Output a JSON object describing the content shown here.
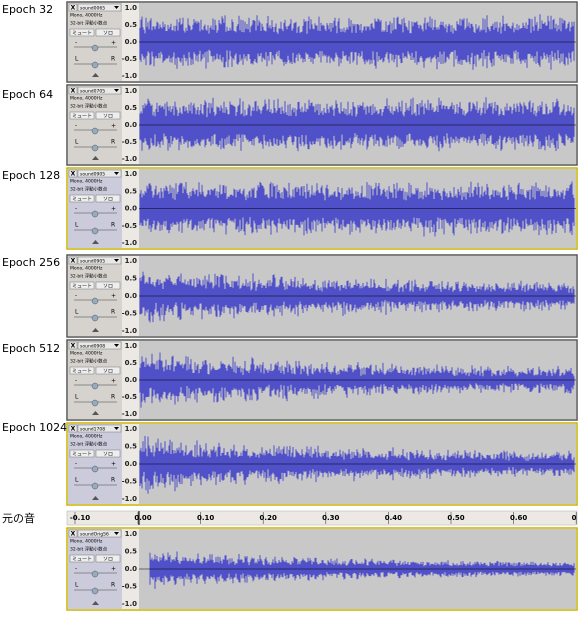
{
  "tracks": [
    {
      "label": "Epoch 32",
      "name": "sound0065",
      "rate": "Mono, 4000Hz",
      "format": "32-bit 浮動小数点"
    },
    {
      "label": "Epoch 64",
      "name": "sound0705",
      "rate": "Mono, 4000Hz",
      "format": "32-bit 浮動小数点"
    },
    {
      "label": "Epoch 128",
      "name": "sound0905",
      "rate": "Mono, 4000Hz",
      "format": "32-bit 浮動小数点"
    },
    {
      "label": "Epoch 256",
      "name": "sound0905",
      "rate": "Mono, 4000Hz",
      "format": "32-bit 浮動小数点"
    },
    {
      "label": "Epoch 512",
      "name": "sound0908",
      "rate": "Mono, 4000Hz",
      "format": "32-bit 浮動小数点"
    },
    {
      "label": "Epoch 1024",
      "name": "sound1708",
      "rate": "Mono, 4000Hz",
      "format": "32-bit 浮動小数点"
    },
    {
      "label": "元の音",
      "name": "soundOrig56",
      "rate": "Mono, 4000Hz",
      "format": "32-bit 浮動小数点"
    }
  ],
  "buttons": {
    "close": "X",
    "mute": "ミュート",
    "solo": "ソロ"
  },
  "sliders": {
    "minus": "-",
    "plus": "+",
    "left": "L",
    "right": "R"
  },
  "amplitude_ticks": [
    "1.0",
    "0.5",
    "0.0",
    "-0.5",
    "-1.0"
  ],
  "ruler_ticks": [
    "-0.10",
    "0.00",
    "0.10",
    "0.20",
    "0.30",
    "0.40",
    "0.50",
    "0.60",
    "0"
  ]
}
